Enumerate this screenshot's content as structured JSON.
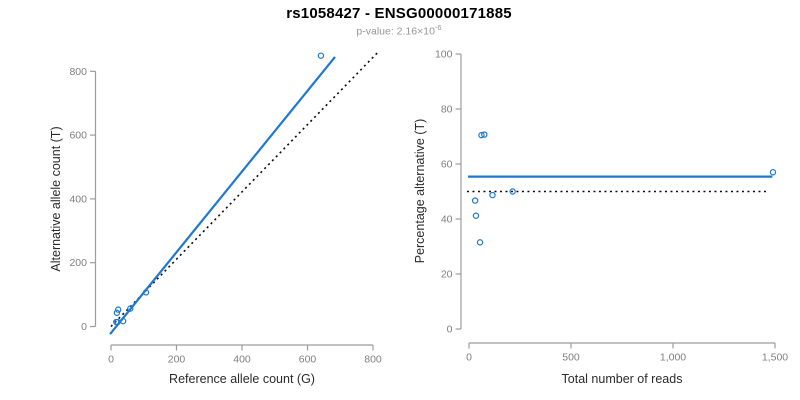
{
  "header": {
    "title": "rs1058427 - ENSG00000171885",
    "subtitle_prefix": "p-value: 2.16×10",
    "subtitle_exponent": "-6"
  },
  "colors": {
    "accent_blue": "#1e78d2",
    "dotted_black": "#0a0a0a",
    "axis_gray": "#9c9c9c",
    "tick_label_gray": "#7f7f7f",
    "axis_title_dark": "#2b2b2b",
    "subtitle_gray": "#979797"
  },
  "chart_data": [
    {
      "type": "scatter",
      "name": "allele-counts-plot",
      "xlabel": "Reference allele count (G)",
      "ylabel": "Alternative allele count (T)",
      "xlim": [
        0,
        860
      ],
      "ylim": [
        0,
        870
      ],
      "grid": false,
      "legend": "none",
      "xticks": [
        {
          "v": 0,
          "label": "0"
        },
        {
          "v": 200,
          "label": "200"
        },
        {
          "v": 400,
          "label": "400"
        },
        {
          "v": 600,
          "label": "600"
        },
        {
          "v": 800,
          "label": "800"
        }
      ],
      "yticks": [
        {
          "v": 0,
          "label": "0"
        },
        {
          "v": 200,
          "label": "200"
        },
        {
          "v": 400,
          "label": "400"
        },
        {
          "v": 600,
          "label": "600"
        },
        {
          "v": 800,
          "label": "800"
        }
      ],
      "points": [
        [
          16,
          14
        ],
        [
          20,
          14
        ],
        [
          37,
          17
        ],
        [
          18,
          43
        ],
        [
          22,
          53
        ],
        [
          59,
          56
        ],
        [
          107,
          107
        ],
        [
          641,
          849
        ]
      ],
      "marker_color": "#1e78d2",
      "lines": [
        {
          "name": "dotted-identity-line",
          "style": "dotted",
          "color": "#0a0a0a",
          "x1": 0,
          "y1": 0,
          "x2": 820,
          "y2": 865
        },
        {
          "name": "fit-line",
          "style": "solid",
          "color": "#1e78d2",
          "x1": -3,
          "y1": -24,
          "x2": 684,
          "y2": 845
        }
      ]
    },
    {
      "type": "scatter",
      "name": "percentage-reads-plot",
      "xlabel": "Total number of reads",
      "ylabel": "Percentage alternative (T)",
      "xlim": [
        0,
        1560
      ],
      "ylim": [
        0,
        100
      ],
      "grid": false,
      "legend": "none",
      "xticks": [
        {
          "v": 0,
          "label": "0"
        },
        {
          "v": 500,
          "label": "500"
        },
        {
          "v": 1000,
          "label": "1,000"
        },
        {
          "v": 1500,
          "label": "1,500"
        }
      ],
      "yticks": [
        {
          "v": 0,
          "label": "0"
        },
        {
          "v": 20,
          "label": "20"
        },
        {
          "v": 40,
          "label": "40"
        },
        {
          "v": 60,
          "label": "60"
        },
        {
          "v": 80,
          "label": "80"
        },
        {
          "v": 100,
          "label": "100"
        }
      ],
      "points": [
        [
          30,
          46.7
        ],
        [
          34,
          41.2
        ],
        [
          54,
          31.5
        ],
        [
          61,
          70.5
        ],
        [
          75,
          70.7
        ],
        [
          115,
          48.7
        ],
        [
          214,
          50
        ],
        [
          1490,
          57
        ]
      ],
      "marker_color": "#1e78d2",
      "lines": [
        {
          "name": "dotted-reference-line-50pct",
          "style": "dotted",
          "color": "#0a0a0a",
          "x1": -10,
          "y1": 50,
          "x2": 1466,
          "y2": 50
        },
        {
          "name": "mean-percentage-line",
          "style": "solid",
          "color": "#1e78d2",
          "x1": -5,
          "y1": 55.4,
          "x2": 1487,
          "y2": 55.4
        }
      ]
    }
  ]
}
